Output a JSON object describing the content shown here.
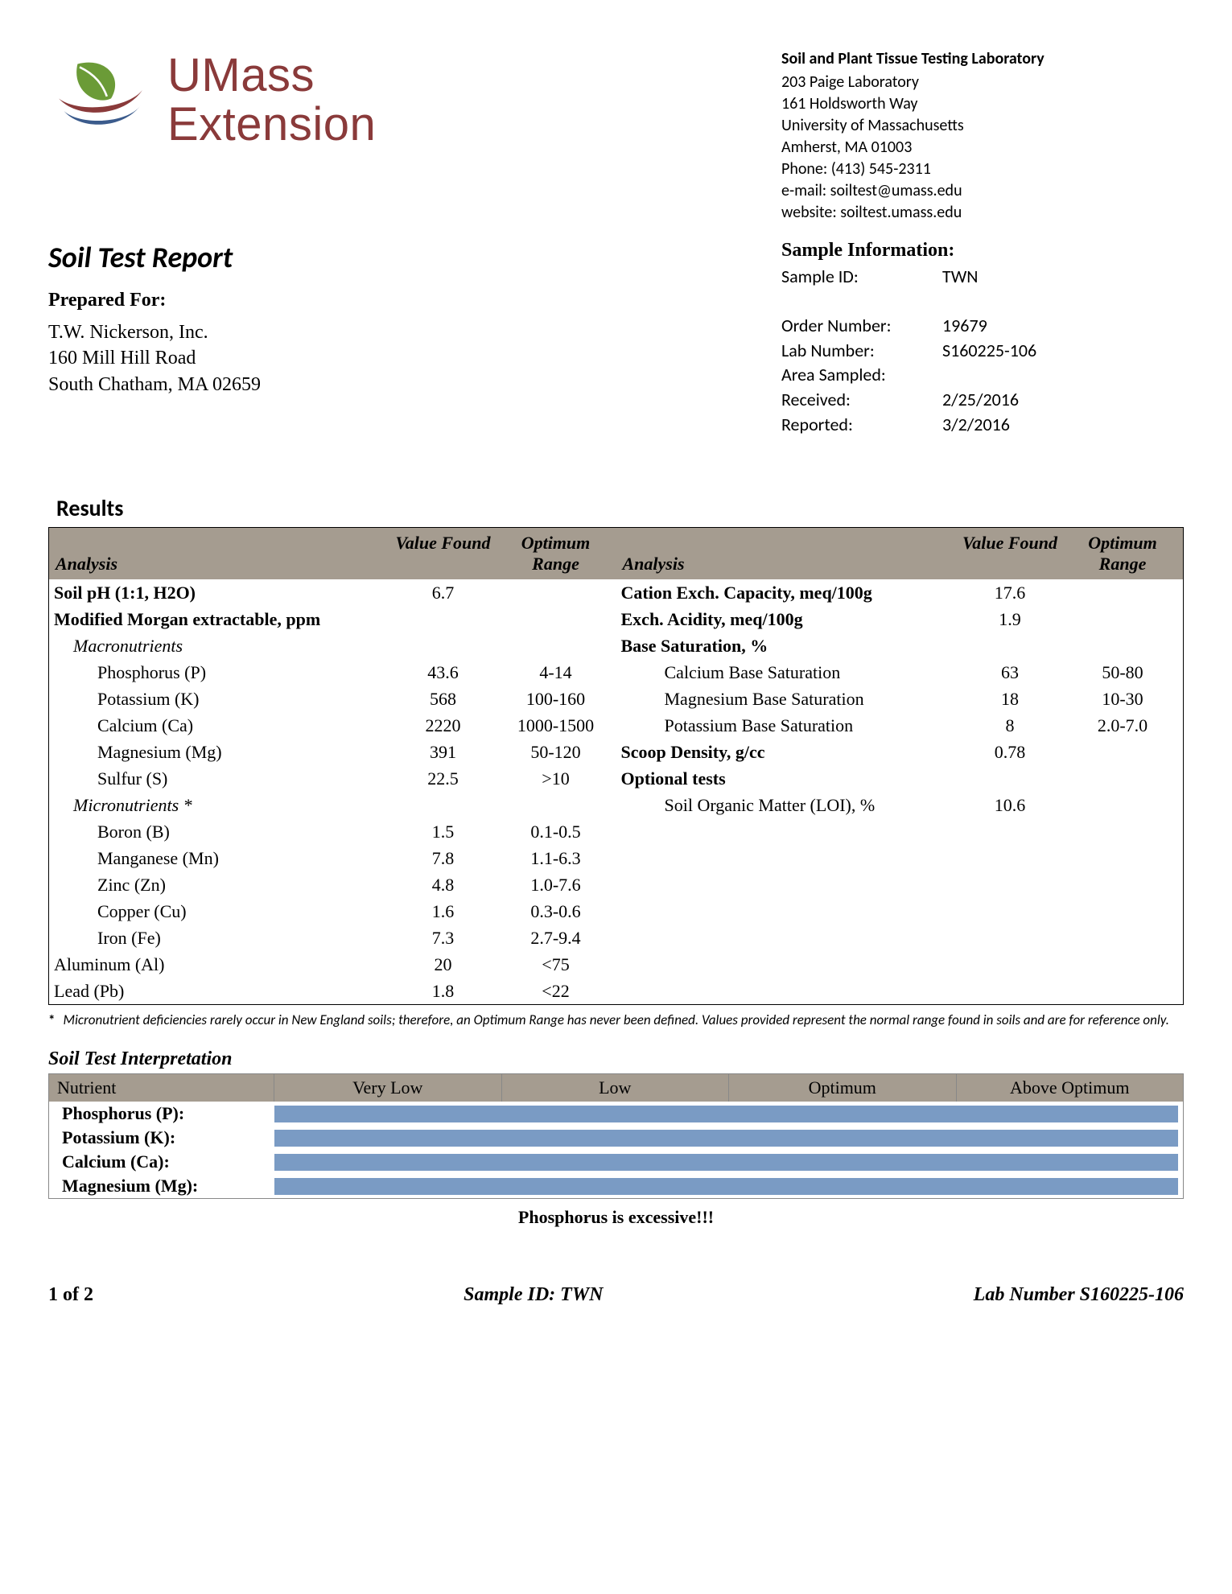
{
  "logo": {
    "line1": "UMass",
    "line2": "Extension",
    "text_color": "#8a3a3a",
    "leaf_color": "#6b9b37",
    "swoosh1_color": "#8a3a3a",
    "swoosh2_color": "#3b5b8c"
  },
  "lab": {
    "title": "Soil and Plant Tissue Testing Laboratory",
    "lines": [
      "203 Paige Laboratory",
      "161 Holdsworth Way",
      "University of Massachusetts",
      "Amherst, MA  01003",
      "Phone:  (413) 545-2311",
      "e-mail: soiltest@umass.edu",
      "website: soiltest.umass.edu"
    ]
  },
  "report_title": "Soil Test Report",
  "prepared_for_label": "Prepared For:",
  "prepared_for": [
    "T.W. Nickerson, Inc.",
    "160 Mill Hill Road",
    "South Chatham, MA 02659"
  ],
  "sample_info_title": "Sample Information:",
  "sample": {
    "id_label": "Sample ID:",
    "id": "TWN",
    "order_label": "Order Number:",
    "order": "19679",
    "labnum_label": "Lab Number:",
    "labnum": "S160225-106",
    "area_label": "Area Sampled:",
    "area": "",
    "received_label": "Received:",
    "received": "2/25/2016",
    "reported_label": "Reported:",
    "reported": "3/2/2016"
  },
  "results_title": "Results",
  "headers": {
    "analysis": "Analysis",
    "value": "Value Found",
    "range": "Optimum Range"
  },
  "left_rows": [
    {
      "label": "Soil pH (1:1, H2O)",
      "val": "6.7",
      "range": "",
      "bold": true,
      "indent": 0
    },
    {
      "label": "Modified Morgan extractable, ppm",
      "val": "",
      "range": "",
      "bold": true,
      "indent": 0
    },
    {
      "label": "Macronutrients",
      "val": "",
      "range": "",
      "italic": true,
      "indent": 1
    },
    {
      "label": "Phosphorus (P)",
      "val": "43.6",
      "range": "4-14",
      "indent": 2
    },
    {
      "label": "Potassium (K)",
      "val": "568",
      "range": "100-160",
      "indent": 2
    },
    {
      "label": "Calcium (Ca)",
      "val": "2220",
      "range": "1000-1500",
      "indent": 2
    },
    {
      "label": "Magnesium (Mg)",
      "val": "391",
      "range": "50-120",
      "indent": 2
    },
    {
      "label": "Sulfur (S)",
      "val": "22.5",
      "range": ">10",
      "indent": 2
    },
    {
      "label": "Micronutrients *",
      "val": "",
      "range": "",
      "italic": true,
      "indent": 1
    },
    {
      "label": "Boron (B)",
      "val": "1.5",
      "range": "0.1-0.5",
      "indent": 2
    },
    {
      "label": "Manganese (Mn)",
      "val": "7.8",
      "range": "1.1-6.3",
      "indent": 2
    },
    {
      "label": "Zinc (Zn)",
      "val": "4.8",
      "range": "1.0-7.6",
      "indent": 2
    },
    {
      "label": "Copper (Cu)",
      "val": "1.6",
      "range": "0.3-0.6",
      "indent": 2
    },
    {
      "label": "Iron (Fe)",
      "val": "7.3",
      "range": "2.7-9.4",
      "indent": 2
    },
    {
      "label": "Aluminum (Al)",
      "val": "20",
      "range": "<75",
      "indent": 0
    },
    {
      "label": "Lead (Pb)",
      "val": "1.8",
      "range": "<22",
      "indent": 0
    }
  ],
  "right_rows": [
    {
      "label": "Cation Exch. Capacity, meq/100g",
      "val": "17.6",
      "range": "",
      "bold": true,
      "indent": 0
    },
    {
      "label": "Exch. Acidity, meq/100g",
      "val": "1.9",
      "range": "",
      "bold": true,
      "indent": 0
    },
    {
      "label": "Base Saturation, %",
      "val": "",
      "range": "",
      "bold": true,
      "indent": 0
    },
    {
      "label": "Calcium Base Saturation",
      "val": "63",
      "range": "50-80",
      "indent": 2
    },
    {
      "label": "Magnesium Base Saturation",
      "val": "18",
      "range": "10-30",
      "indent": 2
    },
    {
      "label": "Potassium Base Saturation",
      "val": "8",
      "range": "2.0-7.0",
      "indent": 2
    },
    {
      "label": "Scoop Density, g/cc",
      "val": "0.78",
      "range": "",
      "bold": true,
      "indent": 0
    },
    {
      "label": "Optional tests",
      "val": "",
      "range": "",
      "bold": true,
      "indent": 0
    },
    {
      "label": "Soil Organic Matter (LOI), %",
      "val": "10.6",
      "range": "",
      "indent": 2
    }
  ],
  "footnote_star": "*",
  "footnote": "Micronutrient deficiencies rarely occur in New England soils; therefore, an Optimum Range has never been defined. Values provided represent the normal range found in soils and are for reference only.",
  "interp_title": "Soil Test Interpretation",
  "interp_headers": [
    "Nutrient",
    "Very Low",
    "Low",
    "Optimum",
    "Above Optimum"
  ],
  "interp_rows": [
    {
      "label": "Phosphorus (P):",
      "pct": 100
    },
    {
      "label": "Potassium (K):",
      "pct": 100
    },
    {
      "label": "Calcium (Ca):",
      "pct": 100
    },
    {
      "label": "Magnesium (Mg):",
      "pct": 100
    }
  ],
  "interp_bar_color": "#7a9bc4",
  "excessive": "Phosphorus is excessive!!!",
  "footer": {
    "page": "1 of 2",
    "mid": "Sample ID: TWN",
    "right": "Lab Number S160225-106"
  }
}
